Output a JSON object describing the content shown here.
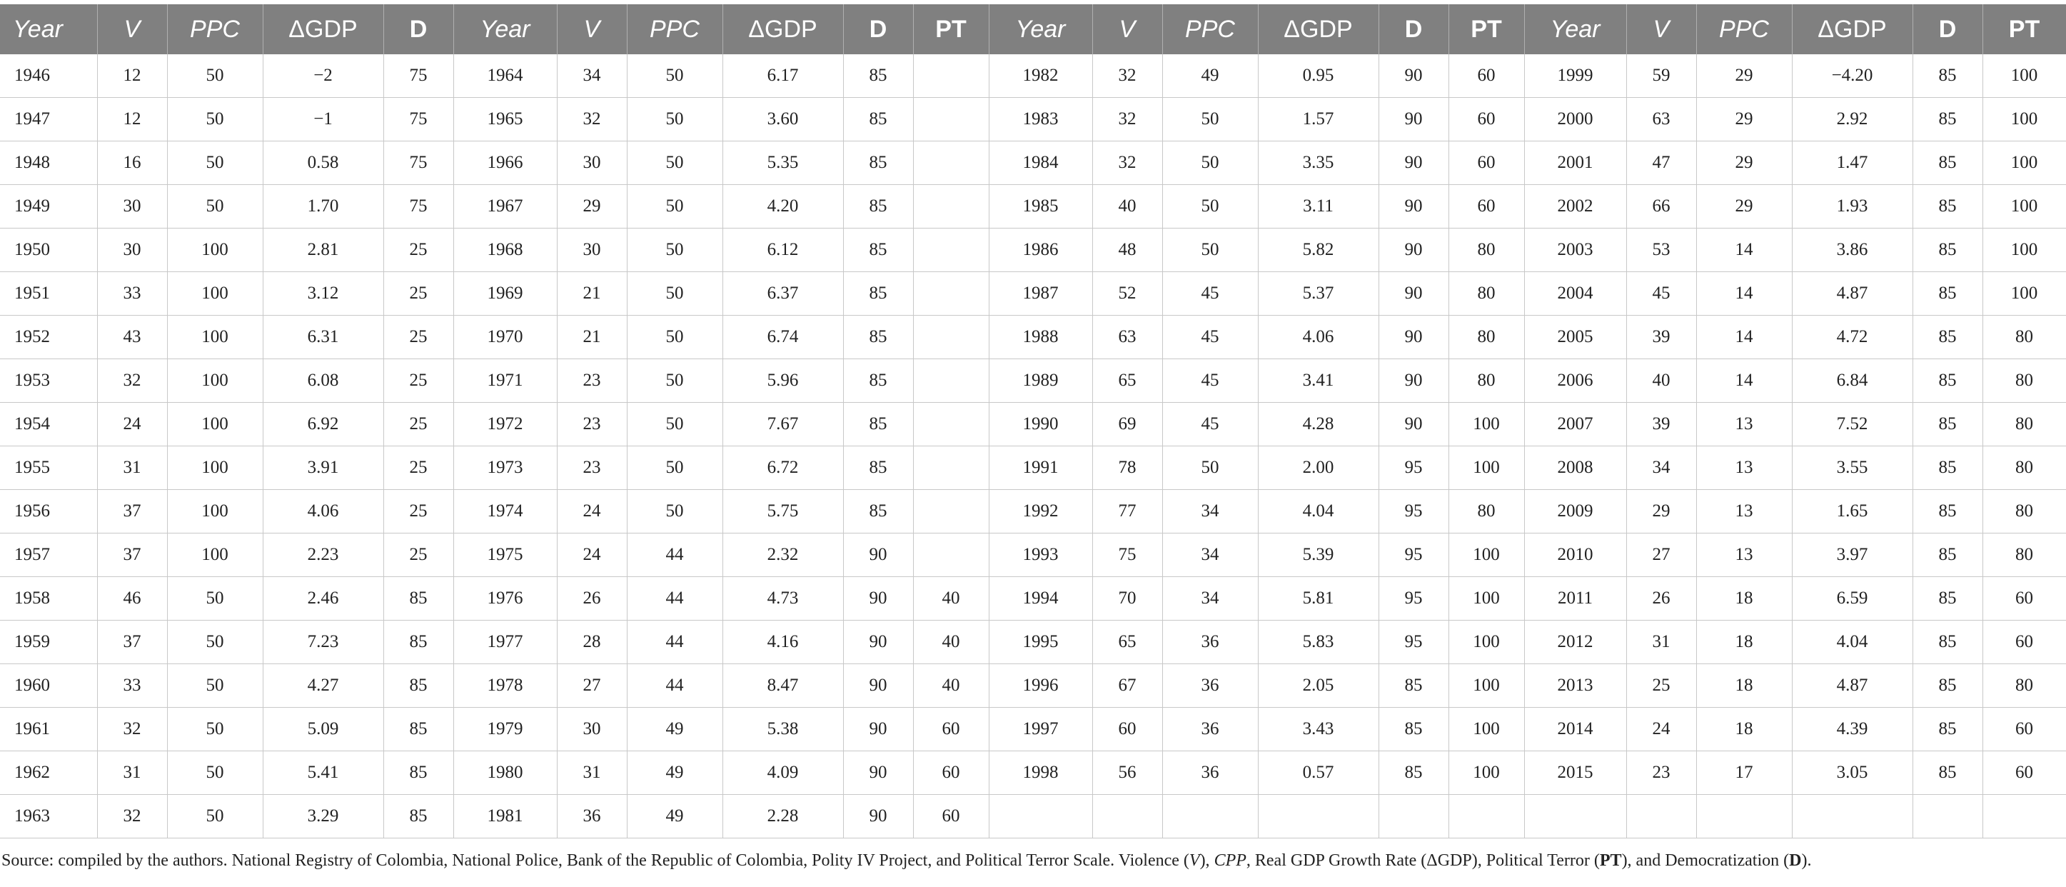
{
  "table": {
    "headers": [
      "Year",
      "V",
      "PPC",
      "ΔGDP",
      "D",
      "Year",
      "V",
      "PPC",
      "ΔGDP",
      "D",
      "PT",
      "Year",
      "V",
      "PPC",
      "ΔGDP",
      "D",
      "PT",
      "Year",
      "V",
      "PPC",
      "ΔGDP",
      "D",
      "PT"
    ],
    "rows": [
      [
        "1946",
        "12",
        "50",
        "−2",
        "75",
        "1964",
        "34",
        "50",
        "6.17",
        "85",
        "",
        "1982",
        "32",
        "49",
        "0.95",
        "90",
        "60",
        "1999",
        "59",
        "29",
        "−4.20",
        "85",
        "100"
      ],
      [
        "1947",
        "12",
        "50",
        "−1",
        "75",
        "1965",
        "32",
        "50",
        "3.60",
        "85",
        "",
        "1983",
        "32",
        "50",
        "1.57",
        "90",
        "60",
        "2000",
        "63",
        "29",
        "2.92",
        "85",
        "100"
      ],
      [
        "1948",
        "16",
        "50",
        "0.58",
        "75",
        "1966",
        "30",
        "50",
        "5.35",
        "85",
        "",
        "1984",
        "32",
        "50",
        "3.35",
        "90",
        "60",
        "2001",
        "47",
        "29",
        "1.47",
        "85",
        "100"
      ],
      [
        "1949",
        "30",
        "50",
        "1.70",
        "75",
        "1967",
        "29",
        "50",
        "4.20",
        "85",
        "",
        "1985",
        "40",
        "50",
        "3.11",
        "90",
        "60",
        "2002",
        "66",
        "29",
        "1.93",
        "85",
        "100"
      ],
      [
        "1950",
        "30",
        "100",
        "2.81",
        "25",
        "1968",
        "30",
        "50",
        "6.12",
        "85",
        "",
        "1986",
        "48",
        "50",
        "5.82",
        "90",
        "80",
        "2003",
        "53",
        "14",
        "3.86",
        "85",
        "100"
      ],
      [
        "1951",
        "33",
        "100",
        "3.12",
        "25",
        "1969",
        "21",
        "50",
        "6.37",
        "85",
        "",
        "1987",
        "52",
        "45",
        "5.37",
        "90",
        "80",
        "2004",
        "45",
        "14",
        "4.87",
        "85",
        "100"
      ],
      [
        "1952",
        "43",
        "100",
        "6.31",
        "25",
        "1970",
        "21",
        "50",
        "6.74",
        "85",
        "",
        "1988",
        "63",
        "45",
        "4.06",
        "90",
        "80",
        "2005",
        "39",
        "14",
        "4.72",
        "85",
        "80"
      ],
      [
        "1953",
        "32",
        "100",
        "6.08",
        "25",
        "1971",
        "23",
        "50",
        "5.96",
        "85",
        "",
        "1989",
        "65",
        "45",
        "3.41",
        "90",
        "80",
        "2006",
        "40",
        "14",
        "6.84",
        "85",
        "80"
      ],
      [
        "1954",
        "24",
        "100",
        "6.92",
        "25",
        "1972",
        "23",
        "50",
        "7.67",
        "85",
        "",
        "1990",
        "69",
        "45",
        "4.28",
        "90",
        "100",
        "2007",
        "39",
        "13",
        "7.52",
        "85",
        "80"
      ],
      [
        "1955",
        "31",
        "100",
        "3.91",
        "25",
        "1973",
        "23",
        "50",
        "6.72",
        "85",
        "",
        "1991",
        "78",
        "50",
        "2.00",
        "95",
        "100",
        "2008",
        "34",
        "13",
        "3.55",
        "85",
        "80"
      ],
      [
        "1956",
        "37",
        "100",
        "4.06",
        "25",
        "1974",
        "24",
        "50",
        "5.75",
        "85",
        "",
        "1992",
        "77",
        "34",
        "4.04",
        "95",
        "80",
        "2009",
        "29",
        "13",
        "1.65",
        "85",
        "80"
      ],
      [
        "1957",
        "37",
        "100",
        "2.23",
        "25",
        "1975",
        "24",
        "44",
        "2.32",
        "90",
        "",
        "1993",
        "75",
        "34",
        "5.39",
        "95",
        "100",
        "2010",
        "27",
        "13",
        "3.97",
        "85",
        "80"
      ],
      [
        "1958",
        "46",
        "50",
        "2.46",
        "85",
        "1976",
        "26",
        "44",
        "4.73",
        "90",
        "40",
        "1994",
        "70",
        "34",
        "5.81",
        "95",
        "100",
        "2011",
        "26",
        "18",
        "6.59",
        "85",
        "60"
      ],
      [
        "1959",
        "37",
        "50",
        "7.23",
        "85",
        "1977",
        "28",
        "44",
        "4.16",
        "90",
        "40",
        "1995",
        "65",
        "36",
        "5.83",
        "95",
        "100",
        "2012",
        "31",
        "18",
        "4.04",
        "85",
        "60"
      ],
      [
        "1960",
        "33",
        "50",
        "4.27",
        "85",
        "1978",
        "27",
        "44",
        "8.47",
        "90",
        "40",
        "1996",
        "67",
        "36",
        "2.05",
        "85",
        "100",
        "2013",
        "25",
        "18",
        "4.87",
        "85",
        "80"
      ],
      [
        "1961",
        "32",
        "50",
        "5.09",
        "85",
        "1979",
        "30",
        "49",
        "5.38",
        "90",
        "60",
        "1997",
        "60",
        "36",
        "3.43",
        "85",
        "100",
        "2014",
        "24",
        "18",
        "4.39",
        "85",
        "60"
      ],
      [
        "1962",
        "31",
        "50",
        "5.41",
        "85",
        "1980",
        "31",
        "49",
        "4.09",
        "90",
        "60",
        "1998",
        "56",
        "36",
        "0.57",
        "85",
        "100",
        "2015",
        "23",
        "17",
        "3.05",
        "85",
        "60"
      ],
      [
        "1963",
        "32",
        "50",
        "3.29",
        "85",
        "1981",
        "36",
        "49",
        "2.28",
        "90",
        "60",
        "",
        "",
        "",
        "",
        "",
        "",
        "",
        "",
        "",
        "",
        "",
        ""
      ]
    ]
  },
  "footnote": {
    "p1": "Source: compiled by the authors. National Registry of Colombia, National Police, Bank of the Republic of Colombia, Polity IV Project, and Political Terror Scale. Violence (",
    "v": "V",
    "p2": "), ",
    "cpp": "CPP",
    "p3": ", Real GDP Growth Rate (ΔGDP), Political Terror (",
    "pt": "PT",
    "p4": "), and Democratization (",
    "d": "D",
    "p5": ")."
  }
}
